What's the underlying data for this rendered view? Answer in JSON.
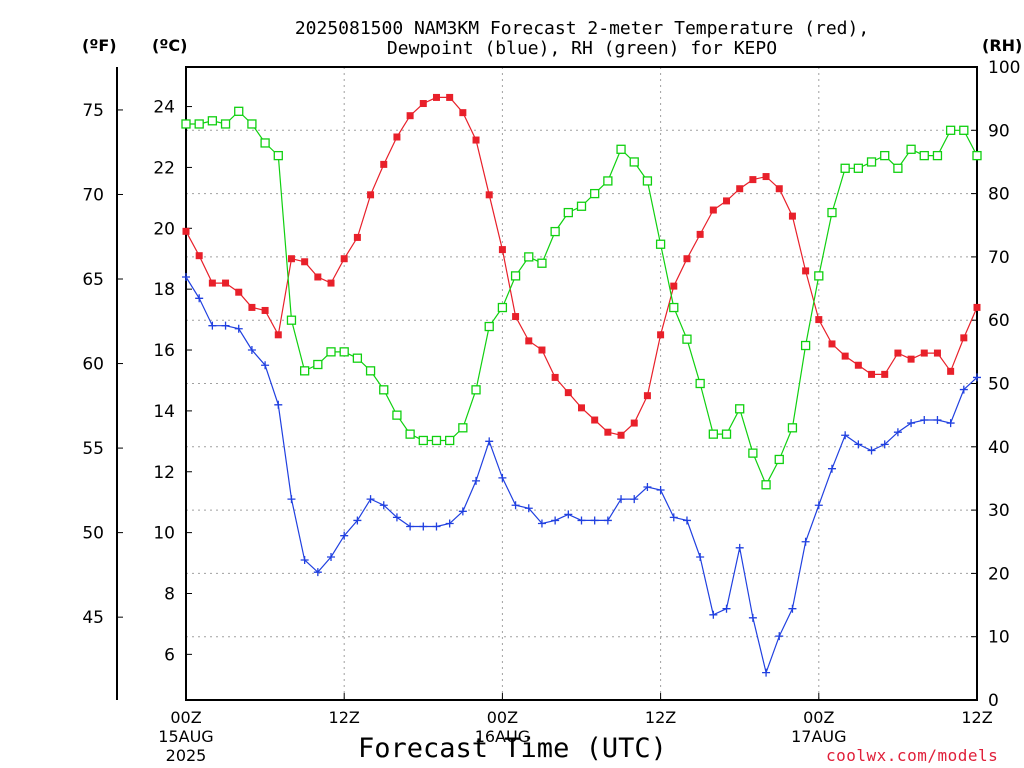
{
  "header": {
    "title_line1": "2025081500 NAM3KM Forecast 2-meter Temperature (red),",
    "title_line2": "Dewpoint (blue), RH (green) for KEPO",
    "unit_f": "(ºF)",
    "unit_c": "(ºC)",
    "unit_rh": "(RH)"
  },
  "footer": {
    "xlabel": "Forecast Time (UTC)",
    "credit": "coolwx.com/models"
  },
  "colors": {
    "temperature": "#e8202a",
    "dewpoint": "#2040e0",
    "rh": "#10d010",
    "grid": "#a0a0a0"
  },
  "chart_data": {
    "type": "line",
    "title": "2025081500 NAM3KM Forecast 2-meter Temperature (red), Dewpoint (blue), RH (green) for KEPO",
    "xlabel": "Forecast Time (UTC)",
    "x_hours": [
      0,
      1,
      2,
      3,
      4,
      5,
      6,
      7,
      8,
      9,
      10,
      11,
      12,
      13,
      14,
      15,
      16,
      17,
      18,
      19,
      20,
      21,
      22,
      23,
      24,
      25,
      26,
      27,
      28,
      29,
      30,
      31,
      32,
      33,
      34,
      35,
      36,
      37,
      38,
      39,
      40,
      41,
      42,
      43,
      44,
      45,
      46,
      47,
      48,
      49,
      50,
      51,
      52,
      53,
      54,
      55,
      56,
      57,
      58,
      59,
      60
    ],
    "x_ticks": [
      {
        "hour": 0,
        "label": "00Z",
        "sub": "15AUG",
        "sub2": "2025"
      },
      {
        "hour": 12,
        "label": "12Z",
        "sub": "",
        "sub2": ""
      },
      {
        "hour": 24,
        "label": "00Z",
        "sub": "16AUG",
        "sub2": ""
      },
      {
        "hour": 36,
        "label": "12Z",
        "sub": "",
        "sub2": ""
      },
      {
        "hour": 48,
        "label": "00Z",
        "sub": "17AUG",
        "sub2": ""
      },
      {
        "hour": 60,
        "label": "12Z",
        "sub": "",
        "sub2": ""
      }
    ],
    "y_celsius": {
      "range": [
        4.5,
        25.3
      ],
      "ticks": [
        6,
        8,
        10,
        12,
        14,
        16,
        18,
        20,
        22,
        24
      ]
    },
    "y_fahrenheit": {
      "ticks": [
        45,
        50,
        55,
        60,
        65,
        70,
        75
      ]
    },
    "y_rh": {
      "range": [
        0,
        100
      ],
      "ticks": [
        0,
        10,
        20,
        30,
        40,
        50,
        60,
        70,
        80,
        90,
        100
      ]
    },
    "grid": true,
    "series": [
      {
        "name": "Temperature",
        "unit": "C",
        "values": [
          19.9,
          19.1,
          18.2,
          18.2,
          17.9,
          17.4,
          17.3,
          16.5,
          19.0,
          18.9,
          18.4,
          18.2,
          19.0,
          19.7,
          21.1,
          22.1,
          23.0,
          23.7,
          24.1,
          24.3,
          24.3,
          23.8,
          22.9,
          21.1,
          19.3,
          17.1,
          16.3,
          16.0,
          15.1,
          14.6,
          14.1,
          13.7,
          13.3,
          13.2,
          13.6,
          14.5,
          16.5,
          18.1,
          19.0,
          19.8,
          20.6,
          20.9,
          21.3,
          21.6,
          21.7,
          21.3,
          20.4,
          18.6,
          17.0,
          16.2,
          15.8,
          15.5,
          15.2,
          15.2,
          15.9,
          15.7,
          15.9,
          15.9,
          15.3,
          16.4,
          17.4
        ]
      },
      {
        "name": "Dewpoint",
        "unit": "C",
        "values": [
          18.4,
          17.7,
          16.8,
          16.8,
          16.7,
          16.0,
          15.5,
          14.2,
          11.1,
          9.1,
          8.7,
          9.2,
          9.9,
          10.4,
          11.1,
          10.9,
          10.5,
          10.2,
          10.2,
          10.2,
          10.3,
          10.7,
          11.7,
          13.0,
          11.8,
          10.9,
          10.8,
          10.3,
          10.4,
          10.6,
          10.4,
          10.4,
          10.4,
          11.1,
          11.1,
          11.5,
          11.4,
          10.5,
          10.4,
          9.2,
          7.3,
          7.5,
          9.5,
          7.2,
          5.4,
          6.6,
          7.5,
          9.7,
          10.9,
          12.1,
          13.2,
          12.9,
          12.7,
          12.9,
          13.3,
          13.6,
          13.7,
          13.7,
          13.6,
          14.7,
          15.1
        ]
      },
      {
        "name": "RH",
        "unit": "%",
        "values": [
          91,
          91,
          91.5,
          91,
          93,
          91,
          88,
          86,
          60,
          52,
          53,
          55,
          55,
          54,
          52,
          49,
          45,
          42,
          41,
          41,
          41,
          43,
          49,
          59,
          62,
          67,
          70,
          69,
          74,
          77,
          78,
          80,
          82,
          87,
          85,
          82,
          72,
          62,
          57,
          50,
          42,
          42,
          46,
          39,
          34,
          38,
          43,
          56,
          67,
          77,
          84,
          84,
          85,
          86,
          84,
          87,
          86,
          86,
          90,
          90,
          86
        ]
      }
    ]
  }
}
